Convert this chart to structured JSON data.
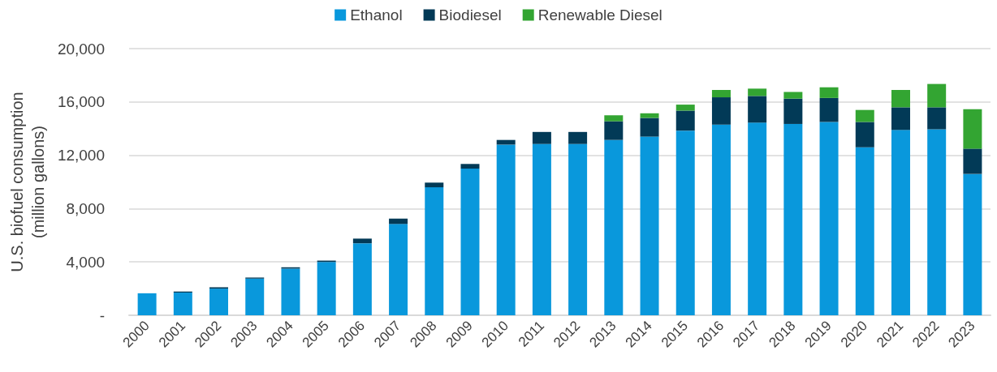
{
  "chart_data": {
    "type": "bar",
    "stacked": true,
    "ylabel": "U.S. biofuel consumption\n(million gallons)",
    "categories": [
      "2000",
      "2001",
      "2002",
      "2003",
      "2004",
      "2005",
      "2006",
      "2007",
      "2008",
      "2009",
      "2010",
      "2011",
      "2012",
      "2013",
      "2014",
      "2015",
      "2016",
      "2017",
      "2018",
      "2019",
      "2020",
      "2021",
      "2022",
      "2023"
    ],
    "series": [
      {
        "name": "Ethanol",
        "color": "#0998dc",
        "values": [
          1650,
          1700,
          2000,
          2750,
          3500,
          4000,
          5400,
          6850,
          9600,
          11000,
          12800,
          12850,
          12850,
          13150,
          13400,
          13850,
          14300,
          14450,
          14350,
          14500,
          12600,
          13900,
          13950,
          10600
        ]
      },
      {
        "name": "Biodiesel",
        "color": "#023a57",
        "values": [
          0,
          80,
          100,
          80,
          100,
          100,
          350,
          400,
          350,
          350,
          350,
          900,
          900,
          1400,
          1400,
          1500,
          2050,
          2000,
          1900,
          1800,
          1900,
          1700,
          1650,
          1900
        ]
      },
      {
        "name": "Renewable Diesel",
        "color": "#33a532",
        "values": [
          0,
          0,
          0,
          0,
          0,
          0,
          0,
          0,
          0,
          0,
          0,
          0,
          0,
          450,
          350,
          450,
          550,
          550,
          500,
          800,
          900,
          1300,
          1750,
          2950
        ]
      }
    ],
    "ylim": [
      0,
      20000
    ],
    "yticks": [
      {
        "value": 0,
        "label": "-"
      },
      {
        "value": 4000,
        "label": "4,000"
      },
      {
        "value": 8000,
        "label": "8,000"
      },
      {
        "value": 12000,
        "label": "12,000"
      },
      {
        "value": 16000,
        "label": "16,000"
      },
      {
        "value": 20000,
        "label": "20,000"
      }
    ],
    "grid": "y",
    "legend": "top"
  }
}
